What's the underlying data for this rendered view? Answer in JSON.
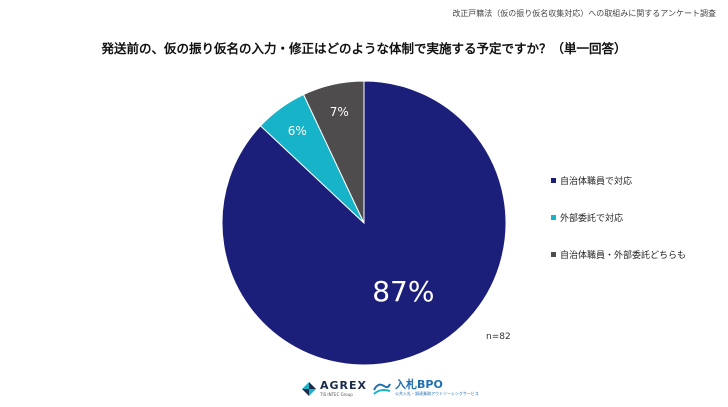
{
  "header_note": "改正戸籍法（仮の振り仮名収集対応）への取組みに関するアンケート調査",
  "title": "発送前の、仮の振り仮名の入力・修正はどのような体制で実施する予定ですか？（単一回答）",
  "sample_size": "n=82",
  "chart_data": {
    "type": "pie",
    "title": "発送前の、仮の振り仮名の入力・修正はどのような体制で実施する予定ですか？（単一回答）",
    "categories": [
      "自治体職員で対応",
      "外部委託で対応",
      "自治体職員・外部委託どちらも"
    ],
    "values": [
      87,
      6,
      7
    ],
    "labels": [
      "87%",
      "6%",
      "7%"
    ],
    "colors": [
      "#1c1f7a",
      "#17b3c9",
      "#4e4c4c"
    ],
    "start": "12 o'clock, clockwise",
    "legend_position": "right"
  },
  "legend": [
    {
      "label": "自治体職員で対応",
      "color": "#1c1f7a"
    },
    {
      "label": "外部委託で対応",
      "color": "#17b3c9"
    },
    {
      "label": "自治体職員・外部委託どちらも",
      "color": "#4e4c4c"
    }
  ],
  "footer": {
    "agrex_name": "AGREX",
    "agrex_sub": "TIS INTEC Group",
    "bpo_name": "入札BPO",
    "bpo_sub": "公共入札・調達業務アウトソーシングサービス"
  }
}
